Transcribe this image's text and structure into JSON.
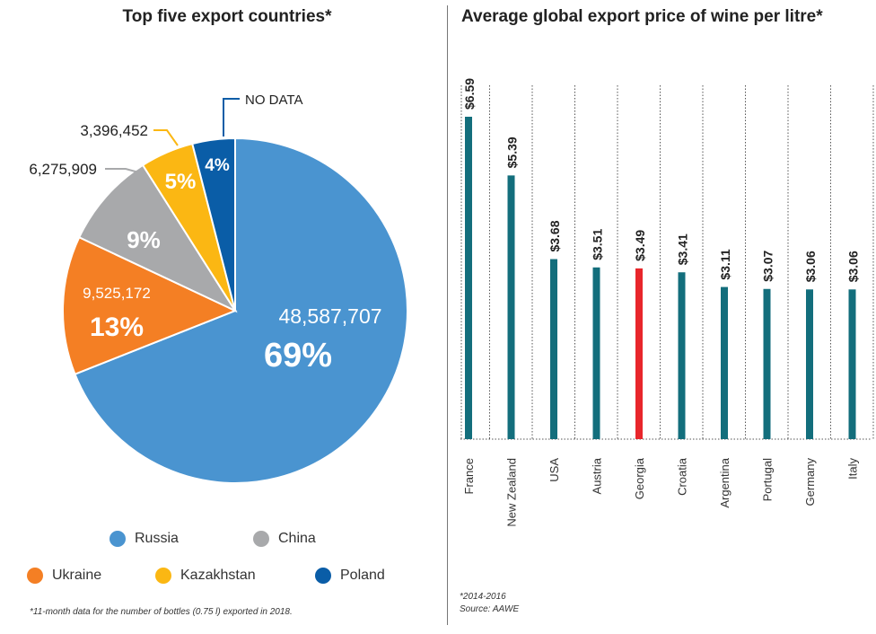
{
  "chart_data": [
    {
      "type": "pie",
      "title": "Top five export countries*",
      "slices": [
        {
          "name": "Russia",
          "value": 48587707,
          "value_label": "48,587,707",
          "percent_label": "69%",
          "color": "#4a94d0"
        },
        {
          "name": "Ukraine",
          "value": 9525172,
          "value_label": "9,525,172",
          "percent_label": "13%",
          "color": "#f47f24"
        },
        {
          "name": "China",
          "value": 6275909,
          "value_label": "6,275,909",
          "percent_label": "9%",
          "color": "#a8a9ab"
        },
        {
          "name": "Kazakhstan",
          "value": 3396452,
          "value_label": "3,396,452",
          "percent_label": "5%",
          "color": "#fbb713"
        },
        {
          "name": "Poland",
          "value": null,
          "value_label": "NO DATA",
          "percent_label": "4%",
          "color": "#0a5da7"
        }
      ],
      "legend": [
        "Russia",
        "China",
        "Ukraine",
        "Kazakhstan",
        "Poland"
      ],
      "footnote": "*11-month data for the number of bottles (0.75 l) exported in 2018."
    },
    {
      "type": "bar",
      "title": "Average global export price of wine per litre*",
      "categories": [
        "France",
        "New Zealand",
        "USA",
        "Austria",
        "Georgia",
        "Croatia",
        "Argentina",
        "Portugal",
        "Germany",
        "Italy"
      ],
      "values": [
        6.59,
        5.39,
        3.68,
        3.51,
        3.49,
        3.41,
        3.11,
        3.07,
        3.06,
        3.06
      ],
      "labels": [
        "$6.59",
        "$5.39",
        "$3.68",
        "$3.51",
        "$3.49",
        "$3.41",
        "$3.11",
        "$3.07",
        "$3.06",
        "$3.06"
      ],
      "highlight": "Georgia",
      "bar_color": "#136e7c",
      "highlight_color": "#e8262b",
      "ylim": [
        0,
        6.7
      ],
      "footnote": "*2014-2016",
      "source": "Source: AAWE"
    }
  ]
}
